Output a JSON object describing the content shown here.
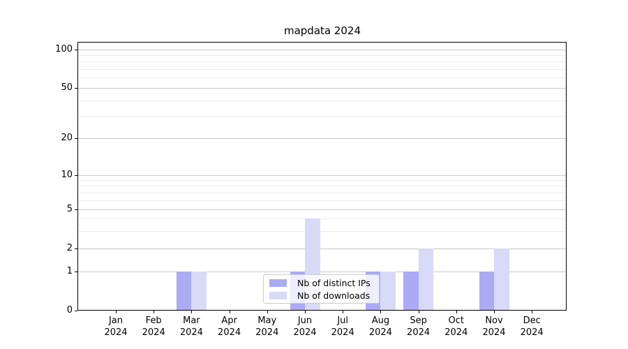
{
  "title": "mapdata 2024",
  "chart_data": {
    "type": "bar",
    "title": "mapdata 2024",
    "categories": [
      "Jan 2024",
      "Feb 2024",
      "Mar 2024",
      "Apr 2024",
      "May 2024",
      "Jun 2024",
      "Jul 2024",
      "Aug 2024",
      "Sep 2024",
      "Oct 2024",
      "Nov 2024",
      "Dec 2024"
    ],
    "series": [
      {
        "name": "Nb of distinct IPs",
        "color": "#aaaaf5",
        "values": [
          0,
          0,
          1,
          0,
          0,
          1,
          0,
          1,
          1,
          0,
          1,
          0
        ]
      },
      {
        "name": "Nb of downloads",
        "color": "#d9d9f8",
        "values": [
          0,
          0,
          1,
          0,
          0,
          4,
          0,
          1,
          2,
          0,
          2,
          0
        ]
      }
    ],
    "xlabel": "",
    "ylabel": "",
    "yticks": [
      0,
      1,
      2,
      5,
      10,
      20,
      50,
      100
    ],
    "minor_gridline_values": [
      3,
      4,
      6,
      7,
      8,
      9,
      30,
      40,
      60,
      70,
      80,
      90
    ],
    "ylim": [
      0,
      140
    ],
    "yscale": "log-like with zero baseline",
    "grid": "horizontal major and minor gridlines",
    "legend_position": "lower center inside plot"
  },
  "colors": {
    "major_grid": "#c9c9c9",
    "minor_grid": "#ebebeb",
    "spine": "#000000",
    "text": "#000000",
    "legend_border": "#cccccc"
  }
}
